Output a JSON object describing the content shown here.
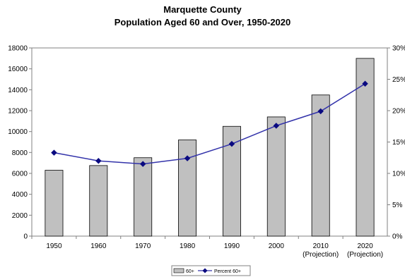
{
  "chart_data": {
    "type": "bar",
    "title": "Marquette County",
    "subtitle": "Population Aged 60 and Over, 1950-2020",
    "categories": [
      "1950",
      "1960",
      "1970",
      "1980",
      "1990",
      "2000",
      "2010",
      "2020"
    ],
    "category_sublabels": [
      "",
      "",
      "",
      "",
      "",
      "",
      "(Projection)",
      "(Projection)"
    ],
    "series": [
      {
        "name": "60+",
        "type": "bar",
        "axis": "left",
        "color": "#c0c0c0",
        "values": [
          6300,
          6750,
          7500,
          9200,
          10500,
          11400,
          13500,
          17000
        ]
      },
      {
        "name": "Percent 60+",
        "type": "line",
        "axis": "right",
        "color": "#3333aa",
        "values": [
          13.3,
          12.0,
          11.5,
          12.4,
          14.7,
          17.6,
          19.9,
          24.3
        ]
      }
    ],
    "y_left": {
      "min": 0,
      "max": 18000,
      "ticks": [
        0,
        2000,
        4000,
        6000,
        8000,
        10000,
        12000,
        14000,
        16000,
        18000
      ]
    },
    "y_right": {
      "min": 0,
      "max": 30,
      "ticks": [
        "0%",
        "5%",
        "10%",
        "15%",
        "20%",
        "25%",
        "30%"
      ]
    },
    "grid": false,
    "legend": {
      "position": "bottom",
      "entries": [
        "60+",
        "Percent 60+"
      ]
    }
  }
}
